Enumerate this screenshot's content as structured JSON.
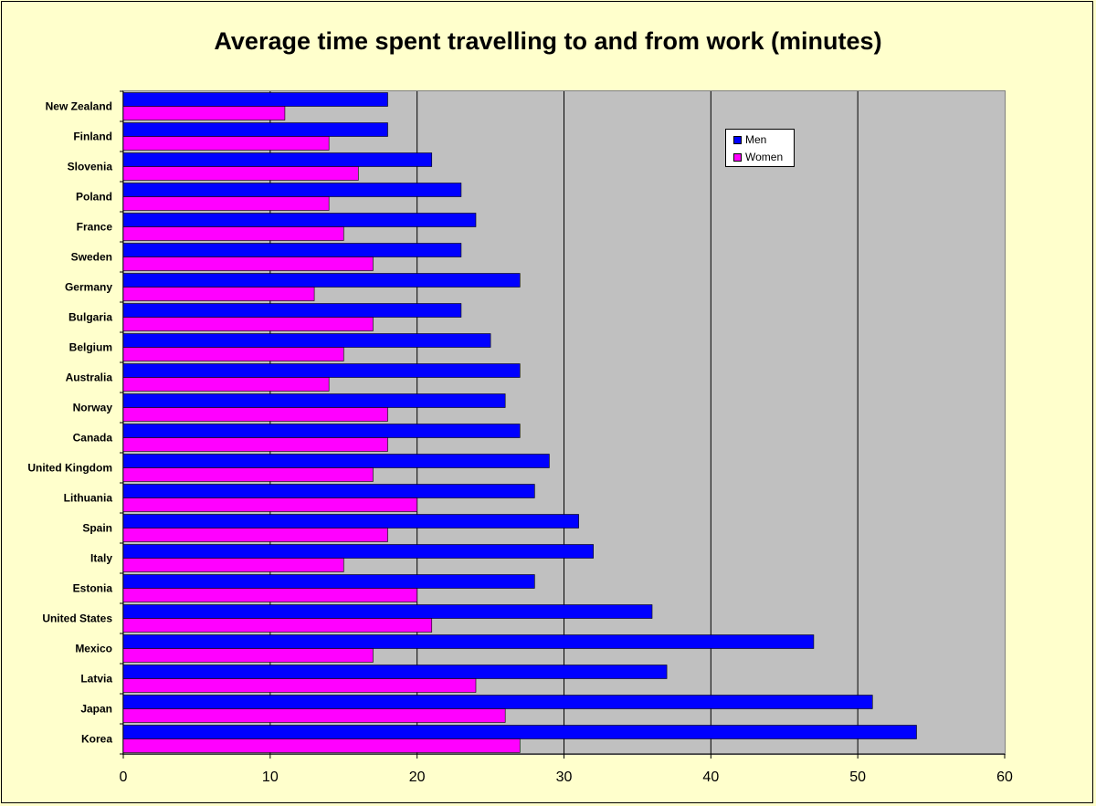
{
  "chart_data": {
    "type": "bar",
    "orientation": "horizontal",
    "title": "Average time spent travelling to and from work (minutes)",
    "categories": [
      "New Zealand",
      "Finland",
      "Slovenia",
      "Poland",
      "France",
      "Sweden",
      "Germany",
      "Bulgaria",
      "Belgium",
      "Australia",
      "Norway",
      "Canada",
      "United Kingdom",
      "Lithuania",
      "Spain",
      "Italy",
      "Estonia",
      "United States",
      "Mexico",
      "Latvia",
      "Japan",
      "Korea"
    ],
    "series": [
      {
        "name": "Men",
        "color": "#0000ff",
        "values": [
          18,
          18,
          21,
          23,
          24,
          23,
          27,
          23,
          25,
          27,
          26,
          27,
          29,
          28,
          31,
          32,
          28,
          36,
          47,
          37,
          51,
          54
        ]
      },
      {
        "name": "Women",
        "color": "#ff00ff",
        "values": [
          11,
          14,
          16,
          14,
          15,
          17,
          13,
          17,
          15,
          14,
          18,
          18,
          17,
          20,
          18,
          15,
          20,
          21,
          17,
          24,
          26,
          27
        ]
      }
    ],
    "xlim": [
      0,
      60
    ],
    "xticks": [
      "0",
      "10",
      "20",
      "30",
      "40",
      "50",
      "60"
    ],
    "grid": "vertical major",
    "legend_position": "top-right",
    "plot_background": "#c0c0c0",
    "chart_background": "#ffffcc"
  }
}
